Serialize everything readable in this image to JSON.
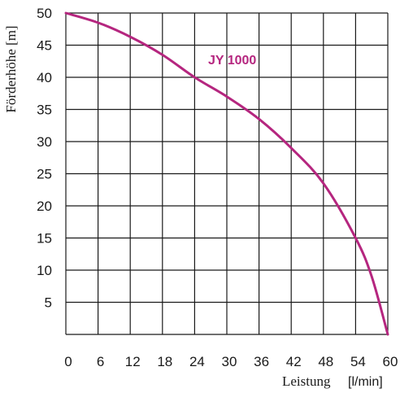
{
  "chart_data": {
    "type": "line",
    "title": "",
    "ylabel": "Förderhöhe [m]",
    "xlabel_parts": [
      "Leistung",
      "[l/min]"
    ],
    "xlim": [
      0,
      60
    ],
    "ylim": [
      0,
      50
    ],
    "x_ticks": [
      "0",
      "6",
      "12",
      "18",
      "24",
      "30",
      "36",
      "42",
      "48",
      "54",
      "60"
    ],
    "y_ticks": [
      "5",
      "10",
      "15",
      "20",
      "25",
      "30",
      "35",
      "40",
      "45",
      "50"
    ],
    "grid": true,
    "series": [
      {
        "name": "JY 1000",
        "color": "#b5267f",
        "points": [
          {
            "x": 0,
            "y": 50
          },
          {
            "x": 6,
            "y": 48.5
          },
          {
            "x": 12,
            "y": 46.3
          },
          {
            "x": 18,
            "y": 43.5
          },
          {
            "x": 24,
            "y": 40
          },
          {
            "x": 30,
            "y": 37
          },
          {
            "x": 36,
            "y": 33.5
          },
          {
            "x": 42,
            "y": 29
          },
          {
            "x": 48,
            "y": 23.5
          },
          {
            "x": 54,
            "y": 15
          },
          {
            "x": 57,
            "y": 9
          },
          {
            "x": 60,
            "y": 0
          }
        ]
      }
    ]
  }
}
